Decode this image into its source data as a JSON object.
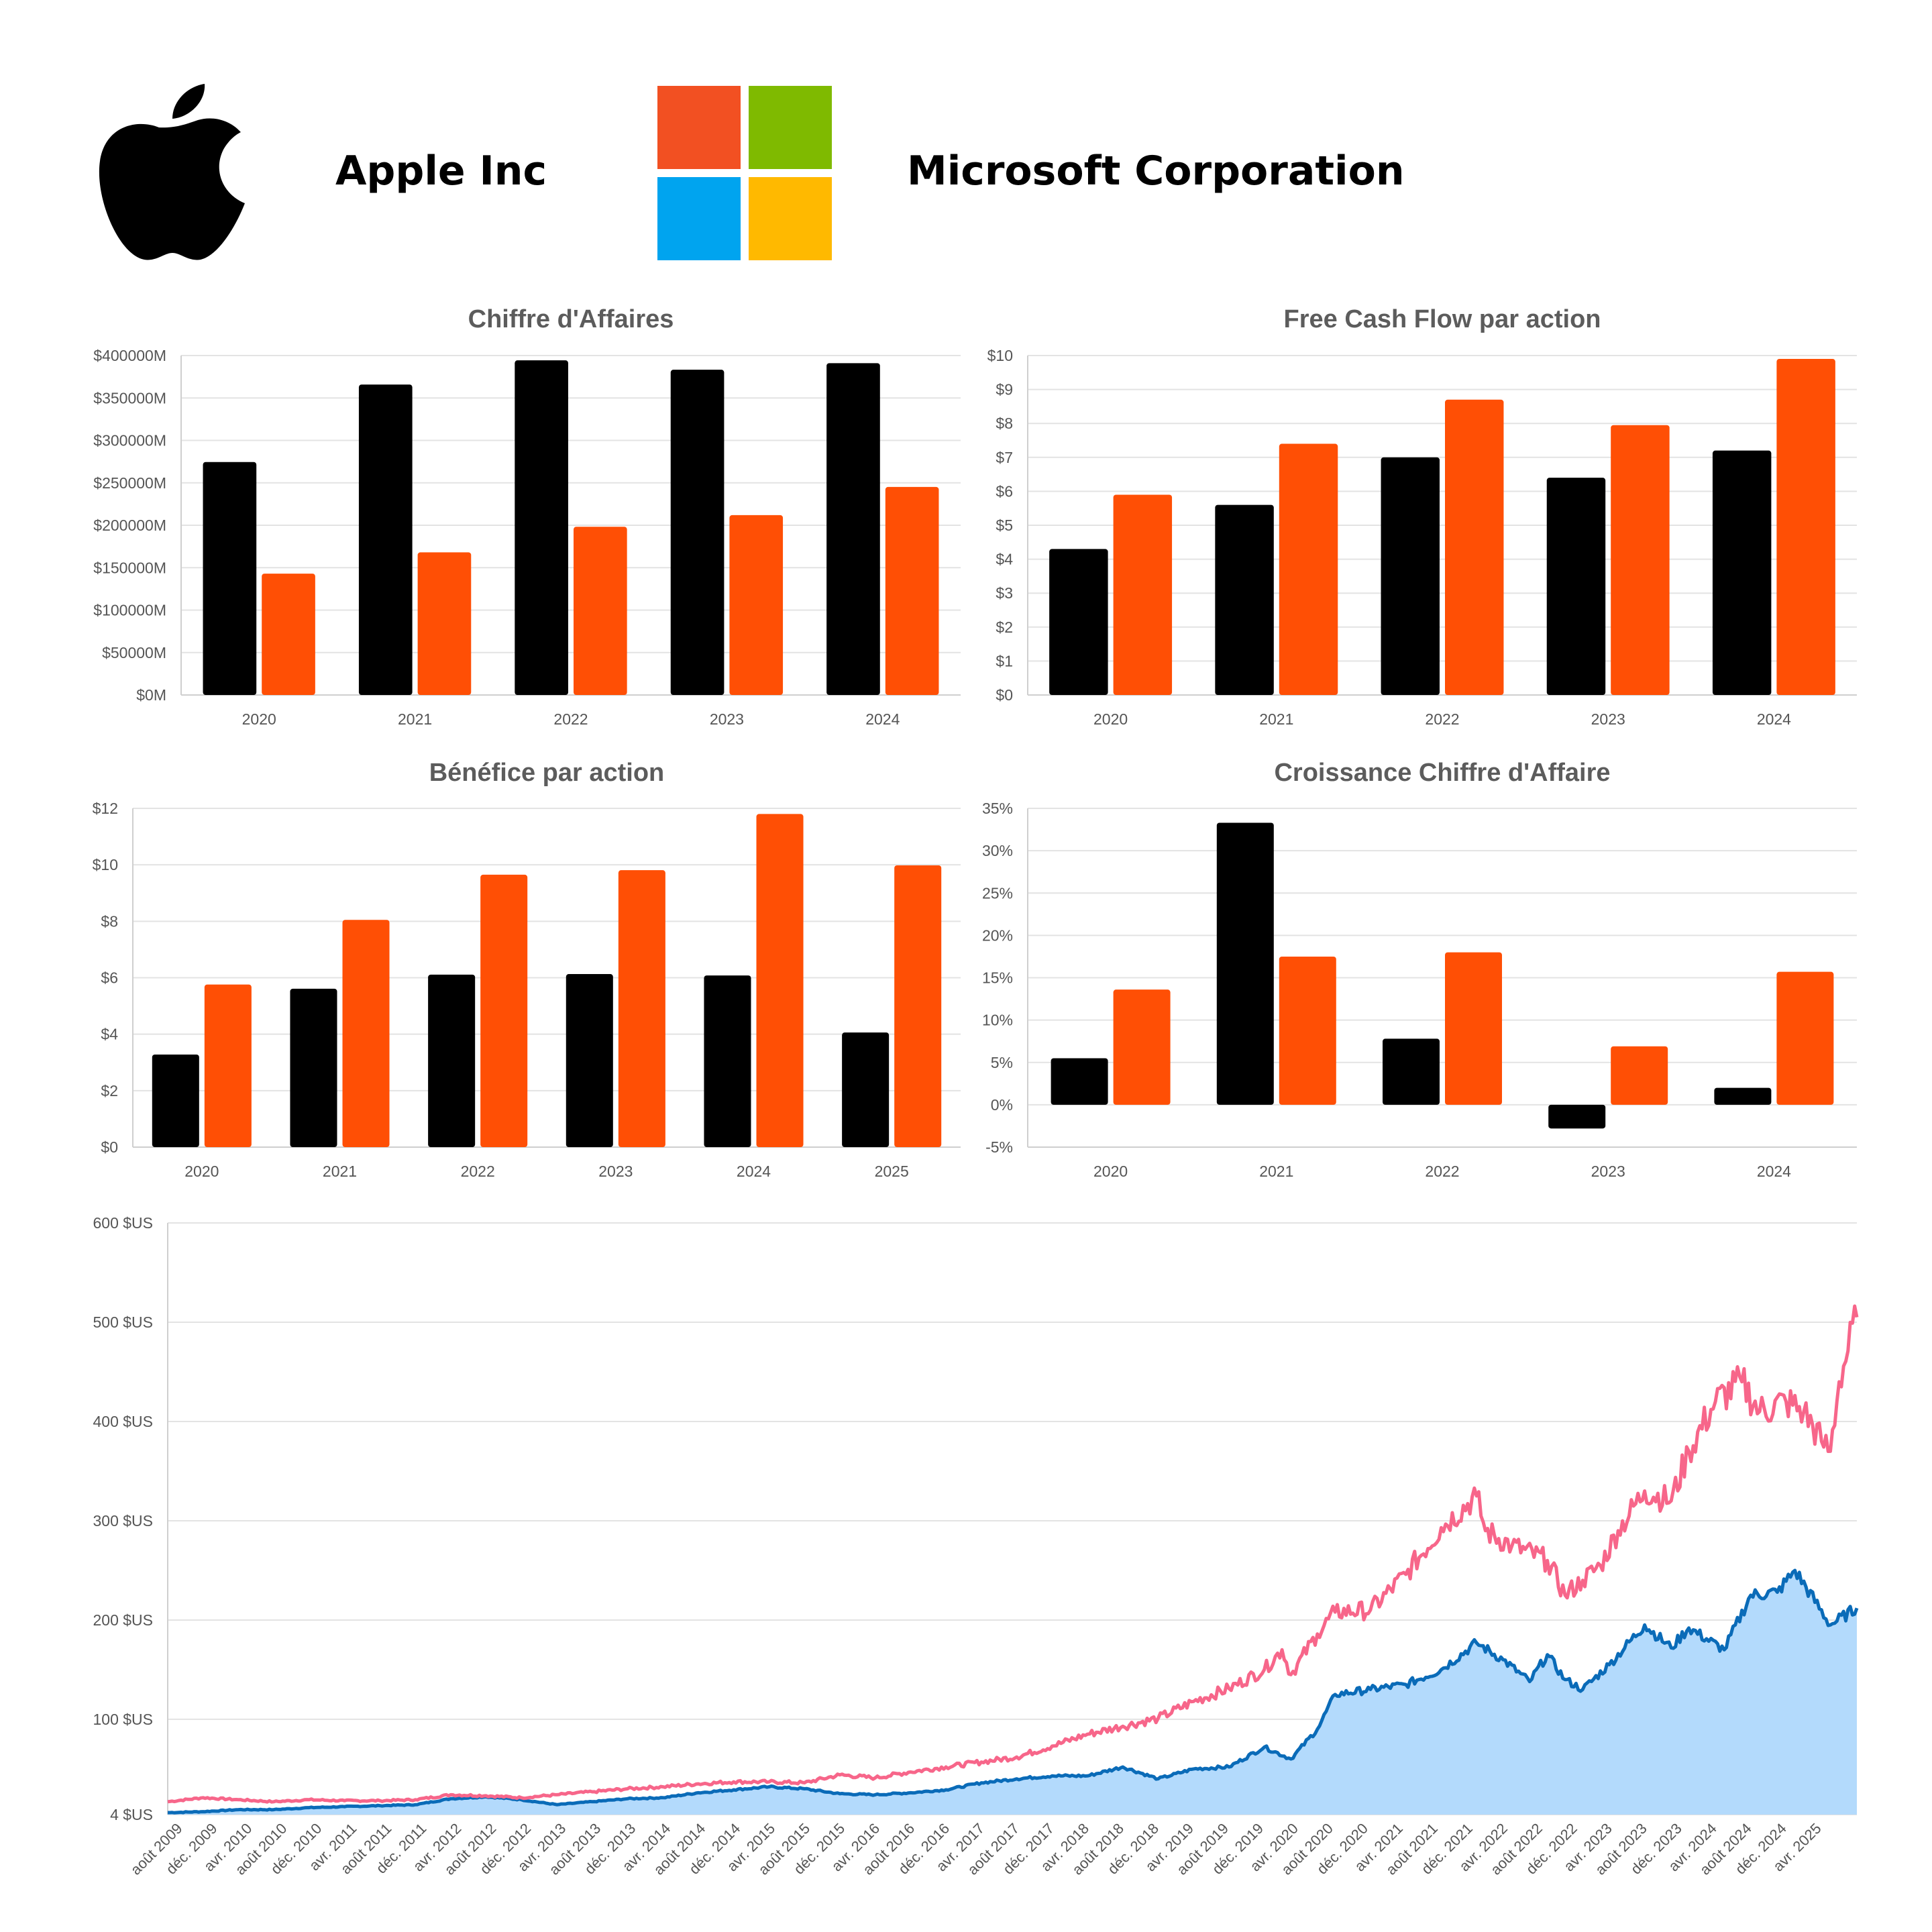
{
  "header": {
    "company_a": "Apple Inc",
    "company_b": "Microsoft Corporation"
  },
  "colors": {
    "apple_bar": "#000000",
    "microsoft_bar": "#ff4f05",
    "microsoft_line": "#f7668a",
    "apple_line": "#0a6bb8",
    "apple_area": "#b3dafc",
    "ms_logo": [
      "#f25022",
      "#7fba00",
      "#00a4ef",
      "#ffb900"
    ],
    "grid": "#e3e3e3",
    "title_text": "#5c5c5c",
    "tick_text": "#555555"
  },
  "icons": {
    "company_a_logo": "apple-logo-icon",
    "company_b_logo": "microsoft-logo-icon"
  },
  "chart_data": [
    {
      "id": "revenue",
      "type": "bar",
      "title": "Chiffre d'Affaires",
      "categories": [
        "2020",
        "2021",
        "2022",
        "2023",
        "2024"
      ],
      "series": [
        {
          "values": [
            274515,
            365817,
            394328,
            383285,
            391035
          ]
        },
        {
          "values": [
            143015,
            168088,
            198270,
            211915,
            245122
          ]
        }
      ],
      "ylim": [
        0,
        400000
      ],
      "ytick_labels": [
        "$0M",
        "$50000M",
        "$100000M",
        "$150000M",
        "$200000M",
        "$250000M",
        "$300000M",
        "$350000M",
        "$400000M"
      ],
      "grid": true
    },
    {
      "id": "fcf",
      "type": "bar",
      "title": "Free Cash Flow par action",
      "categories": [
        "2020",
        "2021",
        "2022",
        "2023",
        "2024"
      ],
      "series": [
        {
          "values": [
            4.3,
            5.6,
            7.0,
            6.4,
            7.2
          ]
        },
        {
          "values": [
            5.9,
            7.4,
            8.7,
            7.95,
            9.9
          ]
        }
      ],
      "ylim": [
        0,
        10
      ],
      "ytick_labels": [
        "$0",
        "$1",
        "$2",
        "$3",
        "$4",
        "$5",
        "$6",
        "$7",
        "$8",
        "$9",
        "$10"
      ],
      "grid": true
    },
    {
      "id": "eps",
      "type": "bar",
      "title": "Bénéfice par action",
      "categories": [
        "2020",
        "2021",
        "2022",
        "2023",
        "2024",
        "2025"
      ],
      "series": [
        {
          "values": [
            3.28,
            5.61,
            6.11,
            6.13,
            6.08,
            4.06
          ]
        },
        {
          "values": [
            5.76,
            8.05,
            9.65,
            9.81,
            11.8,
            9.98
          ]
        }
      ],
      "ylim": [
        0,
        12
      ],
      "ytick_labels": [
        "$0",
        "$2",
        "$4",
        "$6",
        "$8",
        "$10",
        "$12"
      ],
      "grid": true
    },
    {
      "id": "growth",
      "type": "bar",
      "title": "Croissance Chiffre d'Affaire",
      "categories": [
        "2020",
        "2021",
        "2022",
        "2023",
        "2024"
      ],
      "series": [
        {
          "values": [
            5.5,
            33.3,
            7.8,
            -2.8,
            2.0
          ]
        },
        {
          "values": [
            13.6,
            17.5,
            18.0,
            6.9,
            15.7
          ]
        }
      ],
      "ylim": [
        -5,
        35
      ],
      "ytick_labels": [
        "-5%",
        "0%",
        "5%",
        "10%",
        "15%",
        "20%",
        "25%",
        "30%",
        "35%"
      ],
      "grid": true
    },
    {
      "id": "price",
      "type": "line",
      "ylim": [
        4,
        600
      ],
      "yticks": [
        4,
        100,
        200,
        300,
        400,
        500,
        600
      ],
      "ytick_labels": [
        "4 $US",
        "100 $US",
        "200 $US",
        "300 $US",
        "400 $US",
        "500 $US",
        "600 $US"
      ],
      "xtick_labels": [
        "août 2009",
        "déc. 2009",
        "avr. 2010",
        "août 2010",
        "déc. 2010",
        "avr. 2011",
        "août 2011",
        "déc. 2011",
        "avr. 2012",
        "août 2012",
        "déc. 2012",
        "avr. 2013",
        "août 2013",
        "déc. 2013",
        "avr. 2014",
        "août 2014",
        "déc. 2014",
        "avr. 2015",
        "août 2015",
        "déc. 2015",
        "avr. 2016",
        "août 2016",
        "déc. 2016",
        "avr. 2017",
        "août 2017",
        "déc. 2017",
        "avr. 2018",
        "août 2018",
        "déc. 2018",
        "avr. 2019",
        "août 2019",
        "déc. 2019",
        "avr. 2020",
        "août 2020",
        "déc. 2020",
        "avr. 2021",
        "août 2021",
        "déc. 2021",
        "avr. 2022",
        "août 2022",
        "déc. 2022",
        "avr. 2023",
        "août 2023",
        "déc. 2023",
        "avr. 2024",
        "août 2024",
        "déc. 2024",
        "avr. 2025"
      ],
      "x_range": [
        "2009-08",
        "2025-07"
      ],
      "series": [
        {
          "fill": false,
          "points": [
            [
              "2009-08",
              17
            ],
            [
              "2009-12",
              21
            ],
            [
              "2010-04",
              19
            ],
            [
              "2010-08",
              17
            ],
            [
              "2010-12",
              19
            ],
            [
              "2011-04",
              18
            ],
            [
              "2011-08",
              18
            ],
            [
              "2011-12",
              19
            ],
            [
              "2012-04",
              24
            ],
            [
              "2012-08",
              23
            ],
            [
              "2012-12",
              21
            ],
            [
              "2013-04",
              24
            ],
            [
              "2013-08",
              27
            ],
            [
              "2013-12",
              30
            ],
            [
              "2014-04",
              32
            ],
            [
              "2014-08",
              35
            ],
            [
              "2014-12",
              37
            ],
            [
              "2015-04",
              37
            ],
            [
              "2015-08",
              36
            ],
            [
              "2015-12",
              44
            ],
            [
              "2016-04",
              41
            ],
            [
              "2016-08",
              47
            ],
            [
              "2016-12",
              52
            ],
            [
              "2017-04",
              57
            ],
            [
              "2017-08",
              62
            ],
            [
              "2017-12",
              73
            ],
            [
              "2018-04",
              85
            ],
            [
              "2018-08",
              93
            ],
            [
              "2018-12",
              101
            ],
            [
              "2019-04",
              118
            ],
            [
              "2019-08",
              131
            ],
            [
              "2019-12",
              150
            ],
            [
              "2020-02",
              170
            ],
            [
              "2020-03",
              145
            ],
            [
              "2020-06",
              186
            ],
            [
              "2020-08",
              208
            ],
            [
              "2020-12",
              210
            ],
            [
              "2021-04",
              246
            ],
            [
              "2021-08",
              293
            ],
            [
              "2021-12",
              325
            ],
            [
              "2022-01",
              290
            ],
            [
              "2022-04",
              275
            ],
            [
              "2022-08",
              260
            ],
            [
              "2022-10",
              225
            ],
            [
              "2022-12",
              240
            ],
            [
              "2023-02",
              255
            ],
            [
              "2023-04",
              290
            ],
            [
              "2023-07",
              330
            ],
            [
              "2023-10",
              320
            ],
            [
              "2023-12",
              370
            ],
            [
              "2024-03",
              420
            ],
            [
              "2024-06",
              440
            ],
            [
              "2024-08",
              410
            ],
            [
              "2024-11",
              420
            ],
            [
              "2025-01",
              410
            ],
            [
              "2025-03",
              380
            ],
            [
              "2025-04",
              370
            ],
            [
              "2025-05",
              440
            ],
            [
              "2025-07",
              505
            ]
          ]
        },
        {
          "fill": true,
          "points": [
            [
              "2009-08",
              6
            ],
            [
              "2009-12",
              7
            ],
            [
              "2010-04",
              9
            ],
            [
              "2010-08",
              9
            ],
            [
              "2010-12",
              11
            ],
            [
              "2011-04",
              12
            ],
            [
              "2011-08",
              13
            ],
            [
              "2011-12",
              14
            ],
            [
              "2012-04",
              20
            ],
            [
              "2012-08",
              22
            ],
            [
              "2012-12",
              19
            ],
            [
              "2013-04",
              14
            ],
            [
              "2013-08",
              17
            ],
            [
              "2013-12",
              20
            ],
            [
              "2014-04",
              21
            ],
            [
              "2014-08",
              26
            ],
            [
              "2014-12",
              29
            ],
            [
              "2015-04",
              32
            ],
            [
              "2015-08",
              30
            ],
            [
              "2015-12",
              25
            ],
            [
              "2016-04",
              24
            ],
            [
              "2016-08",
              26
            ],
            [
              "2016-12",
              29
            ],
            [
              "2017-04",
              36
            ],
            [
              "2017-08",
              40
            ],
            [
              "2017-12",
              43
            ],
            [
              "2018-04",
              43
            ],
            [
              "2018-08",
              52
            ],
            [
              "2018-12",
              40
            ],
            [
              "2019-04",
              50
            ],
            [
              "2019-08",
              52
            ],
            [
              "2019-12",
              72
            ],
            [
              "2020-03",
              60
            ],
            [
              "2020-06",
              90
            ],
            [
              "2020-08",
              125
            ],
            [
              "2020-12",
              130
            ],
            [
              "2021-04",
              135
            ],
            [
              "2021-08",
              150
            ],
            [
              "2021-12",
              177
            ],
            [
              "2022-03",
              160
            ],
            [
              "2022-06",
              138
            ],
            [
              "2022-08",
              165
            ],
            [
              "2022-10",
              140
            ],
            [
              "2022-12",
              130
            ],
            [
              "2023-03",
              155
            ],
            [
              "2023-07",
              195
            ],
            [
              "2023-10",
              172
            ],
            [
              "2023-12",
              192
            ],
            [
              "2024-04",
              170
            ],
            [
              "2024-07",
              225
            ],
            [
              "2024-10",
              228
            ],
            [
              "2024-12",
              250
            ],
            [
              "2025-04",
              195
            ],
            [
              "2025-07",
              212
            ]
          ]
        }
      ]
    }
  ]
}
